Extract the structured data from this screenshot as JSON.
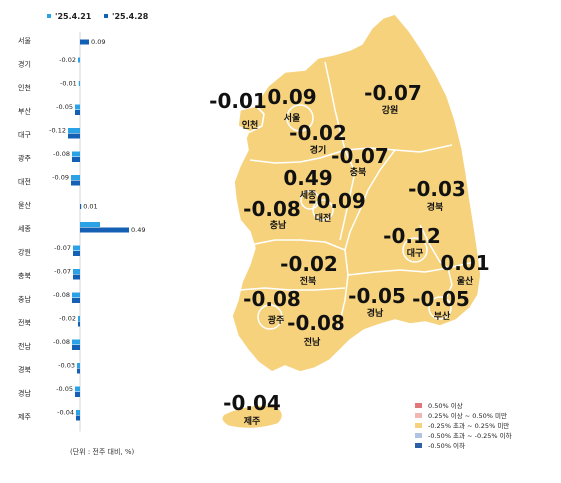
{
  "legend": {
    "series": [
      {
        "name": "'25.4.21",
        "color": "#2aa3e6"
      },
      {
        "name": "'25.4.28",
        "color": "#1460b4"
      }
    ]
  },
  "bar_chart": {
    "regions": [
      {
        "name": "서울",
        "values": [
          null,
          0.09
        ],
        "labels": [
          "",
          "0.09"
        ]
      },
      {
        "name": "경기",
        "values": [
          -0.02,
          null
        ],
        "labels": [
          "-0.02",
          ""
        ]
      },
      {
        "name": "인천",
        "values": [
          -0.01,
          null
        ],
        "labels": [
          "-0.01",
          ""
        ]
      },
      {
        "name": "부산",
        "values": [
          -0.05,
          -0.05
        ],
        "labels": [
          "-0.05",
          ""
        ]
      },
      {
        "name": "대구",
        "values": [
          -0.12,
          -0.12
        ],
        "labels": [
          "-0.12",
          ""
        ]
      },
      {
        "name": "광주",
        "values": [
          -0.08,
          -0.08
        ],
        "labels": [
          "-0.08",
          ""
        ]
      },
      {
        "name": "대전",
        "values": [
          -0.09,
          -0.09
        ],
        "labels": [
          "-0.09",
          ""
        ]
      },
      {
        "name": "울산",
        "values": [
          null,
          0.01
        ],
        "labels": [
          "",
          "0.01"
        ]
      },
      {
        "name": "세종",
        "values": [
          0.2,
          0.49
        ],
        "labels": [
          "",
          "0.49"
        ]
      },
      {
        "name": "강원",
        "values": [
          -0.07,
          -0.07
        ],
        "labels": [
          "-0.07",
          ""
        ]
      },
      {
        "name": "충북",
        "values": [
          -0.07,
          -0.07
        ],
        "labels": [
          "-0.07",
          ""
        ]
      },
      {
        "name": "충남",
        "values": [
          -0.08,
          -0.08
        ],
        "labels": [
          "-0.08",
          ""
        ]
      },
      {
        "name": "전북",
        "values": [
          -0.02,
          -0.02
        ],
        "labels": [
          "-0.02",
          ""
        ]
      },
      {
        "name": "전남",
        "values": [
          -0.08,
          -0.08
        ],
        "labels": [
          "-0.08",
          ""
        ]
      },
      {
        "name": "경북",
        "values": [
          -0.03,
          -0.03
        ],
        "labels": [
          "-0.03",
          ""
        ]
      },
      {
        "name": "경남",
        "values": [
          -0.05,
          -0.05
        ],
        "labels": [
          "-0.05",
          ""
        ]
      },
      {
        "name": "제주",
        "values": [
          -0.04,
          -0.04
        ],
        "labels": [
          "-0.04",
          ""
        ]
      }
    ],
    "unit_note": "(단위 : 전주 대비, %)"
  },
  "map": {
    "land_color": "#f6d27c",
    "border_color": "#ffffff",
    "labels": [
      {
        "region": "인천",
        "value": "-0.01"
      },
      {
        "region": "서울",
        "value": "0.09"
      },
      {
        "region": "경기",
        "value": "-0.02"
      },
      {
        "region": "강원",
        "value": "-0.07"
      },
      {
        "region": "충북",
        "value": "-0.07"
      },
      {
        "region": "세종",
        "value": "0.49"
      },
      {
        "region": "대전",
        "value": "-0.09"
      },
      {
        "region": "충남",
        "value": "-0.08"
      },
      {
        "region": "경북",
        "value": "-0.03"
      },
      {
        "region": "대구",
        "value": "-0.12"
      },
      {
        "region": "전북",
        "value": "-0.02"
      },
      {
        "region": "울산",
        "value": "0.01"
      },
      {
        "region": "광주",
        "value": "-0.08"
      },
      {
        "region": "경남",
        "value": "-0.05"
      },
      {
        "region": "부산",
        "value": "-0.05"
      },
      {
        "region": "전남",
        "value": "-0.08"
      },
      {
        "region": "제주",
        "value": "-0.04"
      }
    ]
  },
  "map_legend": [
    {
      "label": "0.50% 이상",
      "color": "#e0777b"
    },
    {
      "label": "0.25% 이상 ~ 0.50% 미만",
      "color": "#f1b6b4"
    },
    {
      "label": "-0.25% 초과 ~ 0.25% 미만",
      "color": "#f6d27c"
    },
    {
      "label": "-0.50% 초과 ~ -0.25% 이하",
      "color": "#aec4e2"
    },
    {
      "label": "-0.50% 이하",
      "color": "#2b5fa6"
    }
  ]
}
